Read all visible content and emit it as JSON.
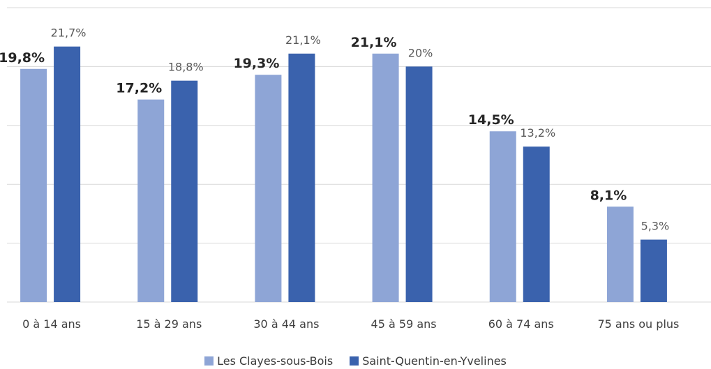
{
  "chart_data": {
    "type": "bar",
    "categories": [
      "0 à 14 ans",
      "15 à 29 ans",
      "30 à 44 ans",
      "45 à 59 ans",
      "60 à 74 ans",
      "75 ans ou plus"
    ],
    "series": [
      {
        "name": "Les Clayes-sous-Bois",
        "values": [
          19.8,
          17.2,
          19.3,
          21.1,
          14.5,
          8.1
        ],
        "labels": [
          "19,8%",
          "17,2%",
          "19,3%",
          "21,1%",
          "14,5%",
          "8,1%"
        ],
        "color": "#8EA5D6"
      },
      {
        "name": "Saint-Quentin-en-Yvelines",
        "values": [
          21.7,
          18.8,
          21.1,
          20,
          13.2,
          5.3
        ],
        "labels": [
          "21,7%",
          "18,8%",
          "21,1%",
          "20%",
          "13,2%",
          "5,3%"
        ],
        "color": "#3A62AD"
      }
    ],
    "ylim": [
      0,
      25
    ],
    "grid": true,
    "legend": "bottom",
    "title": "",
    "xlabel": "",
    "ylabel": ""
  }
}
